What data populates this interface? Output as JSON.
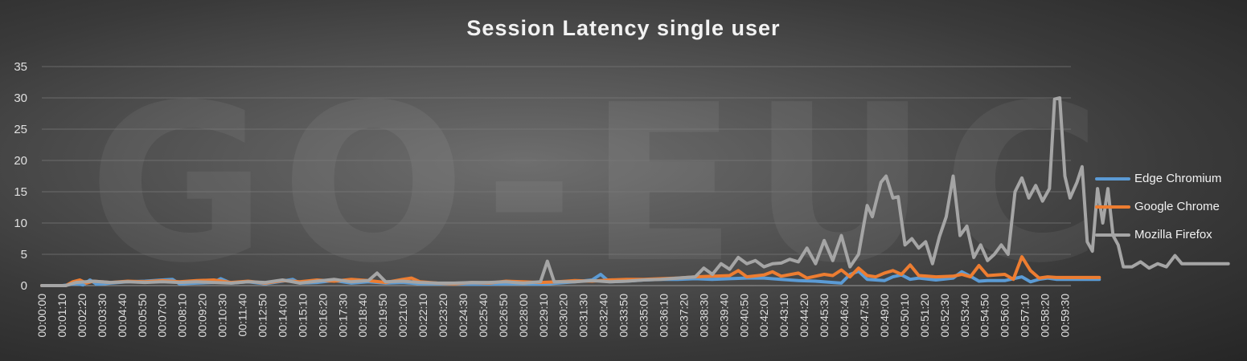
{
  "chart_data": {
    "type": "line",
    "title": "Session Latency single user",
    "watermark": "GO-EUC",
    "ylim": [
      0,
      35
    ],
    "yticks": [
      0,
      5,
      10,
      15,
      20,
      25,
      30,
      35
    ],
    "grid": true,
    "legend_position": "right",
    "x_labels": [
      "00:00:00",
      "00:01:10",
      "00:02:20",
      "00:03:30",
      "00:04:40",
      "00:05:50",
      "00:07:00",
      "00:08:10",
      "00:09:20",
      "00:10:30",
      "00:11:40",
      "00:12:50",
      "00:14:00",
      "00:15:10",
      "00:16:20",
      "00:17:30",
      "00:18:40",
      "00:19:50",
      "00:21:00",
      "00:22:10",
      "00:23:20",
      "00:24:30",
      "00:25:40",
      "00:26:50",
      "00:28:00",
      "00:29:10",
      "00:30:20",
      "00:31:30",
      "00:32:40",
      "00:33:50",
      "00:35:00",
      "00:36:10",
      "00:37:20",
      "00:38:30",
      "00:39:40",
      "00:40:50",
      "00:42:00",
      "00:43:10",
      "00:44:20",
      "00:45:30",
      "00:46:40",
      "00:47:50",
      "00:49:00",
      "00:50:10",
      "00:51:20",
      "00:52:30",
      "00:53:40",
      "00:54:50",
      "00:56:00",
      "00:57:10",
      "00:58:20",
      "00:59:30"
    ],
    "x_range_minutes": [
      0,
      61.5
    ],
    "series": [
      {
        "name": "Edge Chromium",
        "color": "#5b9bd5",
        "points": [
          [
            0,
            0
          ],
          [
            1.2,
            0
          ],
          [
            2.0,
            0.3
          ],
          [
            2.4,
            0.1
          ],
          [
            2.8,
            0.9
          ],
          [
            3.2,
            0.2
          ],
          [
            4,
            0.4
          ],
          [
            5,
            0.6
          ],
          [
            6,
            0.7
          ],
          [
            7,
            0.9
          ],
          [
            7.6,
            1.0
          ],
          [
            8,
            0.3
          ],
          [
            9,
            0.4
          ],
          [
            10,
            0.5
          ],
          [
            10.4,
            1.1
          ],
          [
            11,
            0.4
          ],
          [
            12,
            0.6
          ],
          [
            13,
            0.3
          ],
          [
            14,
            0.7
          ],
          [
            14.6,
            1.0
          ],
          [
            15,
            0.4
          ],
          [
            16,
            0.5
          ],
          [
            17,
            0.8
          ],
          [
            18,
            0.4
          ],
          [
            19,
            0.6
          ],
          [
            20,
            0.4
          ],
          [
            21,
            0.5
          ],
          [
            22,
            0.3
          ],
          [
            23,
            0.3
          ],
          [
            24,
            0.3
          ],
          [
            25,
            0.2
          ],
          [
            26,
            0.2
          ],
          [
            27,
            0.3
          ],
          [
            28,
            0.3
          ],
          [
            29,
            0.2
          ],
          [
            30,
            0.4
          ],
          [
            31,
            0.6
          ],
          [
            32,
            0.9
          ],
          [
            32.5,
            1.8
          ],
          [
            33,
            0.6
          ],
          [
            34,
            0.7
          ],
          [
            35,
            0.9
          ],
          [
            36,
            1.0
          ],
          [
            37,
            1.0
          ],
          [
            38,
            1.1
          ],
          [
            39,
            1.0
          ],
          [
            40,
            1.1
          ],
          [
            41,
            1.2
          ],
          [
            42,
            1.2
          ],
          [
            43,
            1.0
          ],
          [
            44,
            0.8
          ],
          [
            45,
            0.7
          ],
          [
            46,
            0.5
          ],
          [
            46.5,
            0.4
          ],
          [
            47,
            1.8
          ],
          [
            47.5,
            2.3
          ],
          [
            48,
            1.0
          ],
          [
            49,
            0.8
          ],
          [
            49.5,
            1.4
          ],
          [
            50,
            1.7
          ],
          [
            50.5,
            1.0
          ],
          [
            51,
            1.2
          ],
          [
            52,
            0.9
          ],
          [
            53,
            1.2
          ],
          [
            53.5,
            2.2
          ],
          [
            54,
            1.5
          ],
          [
            54.5,
            0.7
          ],
          [
            55,
            0.8
          ],
          [
            56,
            0.8
          ],
          [
            57,
            1.4
          ],
          [
            57.5,
            0.6
          ],
          [
            58,
            1.0
          ],
          [
            58.5,
            1.2
          ],
          [
            59,
            1.0
          ],
          [
            60,
            1.0
          ],
          [
            61.5,
            1.0
          ]
        ]
      },
      {
        "name": "Google Chrome",
        "color": "#ed7d31",
        "points": [
          [
            0,
            0
          ],
          [
            1.4,
            0
          ],
          [
            1.8,
            0.6
          ],
          [
            2.2,
            0.9
          ],
          [
            2.6,
            0.4
          ],
          [
            3,
            0.7
          ],
          [
            4,
            0.5
          ],
          [
            5,
            0.7
          ],
          [
            6,
            0.6
          ],
          [
            7,
            0.8
          ],
          [
            8,
            0.6
          ],
          [
            9,
            0.8
          ],
          [
            10,
            0.9
          ],
          [
            11,
            0.5
          ],
          [
            12,
            0.7
          ],
          [
            13,
            0.4
          ],
          [
            14,
            0.8
          ],
          [
            15,
            0.6
          ],
          [
            16,
            0.9
          ],
          [
            17,
            0.7
          ],
          [
            18,
            1.0
          ],
          [
            19,
            0.8
          ],
          [
            20,
            0.5
          ],
          [
            21,
            1.0
          ],
          [
            21.5,
            1.2
          ],
          [
            22,
            0.6
          ],
          [
            23,
            0.4
          ],
          [
            24,
            0.3
          ],
          [
            25,
            0.5
          ],
          [
            26,
            0.4
          ],
          [
            27,
            0.7
          ],
          [
            28,
            0.6
          ],
          [
            29,
            0.5
          ],
          [
            30,
            0.6
          ],
          [
            31,
            0.8
          ],
          [
            32,
            0.7
          ],
          [
            33,
            0.9
          ],
          [
            34,
            1.0
          ],
          [
            35,
            1.0
          ],
          [
            36,
            1.1
          ],
          [
            37,
            1.2
          ],
          [
            38,
            1.4
          ],
          [
            39,
            1.5
          ],
          [
            40,
            1.6
          ],
          [
            40.5,
            2.4
          ],
          [
            41,
            1.4
          ],
          [
            42,
            1.7
          ],
          [
            42.5,
            2.2
          ],
          [
            43,
            1.5
          ],
          [
            44,
            2.0
          ],
          [
            44.5,
            1.2
          ],
          [
            45,
            1.5
          ],
          [
            45.5,
            1.8
          ],
          [
            46,
            1.6
          ],
          [
            46.5,
            2.5
          ],
          [
            47,
            1.4
          ],
          [
            47.5,
            2.8
          ],
          [
            48,
            1.6
          ],
          [
            48.5,
            1.4
          ],
          [
            49,
            2.0
          ],
          [
            49.5,
            2.4
          ],
          [
            50,
            1.8
          ],
          [
            50.5,
            3.3
          ],
          [
            51,
            1.6
          ],
          [
            51.5,
            1.5
          ],
          [
            52,
            1.4
          ],
          [
            53,
            1.5
          ],
          [
            53.5,
            1.8
          ],
          [
            54,
            1.4
          ],
          [
            54.5,
            3.2
          ],
          [
            55,
            1.6
          ],
          [
            56,
            1.8
          ],
          [
            56.5,
            1.0
          ],
          [
            57,
            4.6
          ],
          [
            57.5,
            2.4
          ],
          [
            58,
            1.2
          ],
          [
            58.5,
            1.4
          ],
          [
            59,
            1.3
          ],
          [
            60,
            1.3
          ],
          [
            61.5,
            1.3
          ]
        ]
      },
      {
        "name": "Mozilla Firefox",
        "color": "#a5a5a5",
        "points": [
          [
            0,
            0
          ],
          [
            1.4,
            0
          ],
          [
            2,
            0.5
          ],
          [
            3,
            0.7
          ],
          [
            4,
            0.5
          ],
          [
            5,
            0.6
          ],
          [
            6,
            0.5
          ],
          [
            7,
            0.6
          ],
          [
            8,
            0.5
          ],
          [
            9,
            0.6
          ],
          [
            10,
            0.5
          ],
          [
            11,
            0.4
          ],
          [
            12,
            0.6
          ],
          [
            13,
            0.5
          ],
          [
            14,
            0.9
          ],
          [
            15,
            0.4
          ],
          [
            16,
            0.7
          ],
          [
            17,
            1.0
          ],
          [
            18,
            0.6
          ],
          [
            19,
            0.8
          ],
          [
            19.5,
            2.0
          ],
          [
            20,
            0.6
          ],
          [
            21,
            0.7
          ],
          [
            22,
            0.5
          ],
          [
            23,
            0.4
          ],
          [
            24,
            0.4
          ],
          [
            25,
            0.5
          ],
          [
            26,
            0.5
          ],
          [
            27,
            0.6
          ],
          [
            28,
            0.4
          ],
          [
            29,
            0.6
          ],
          [
            29.4,
            3.9
          ],
          [
            29.8,
            0.6
          ],
          [
            31,
            0.6
          ],
          [
            32,
            0.8
          ],
          [
            33,
            0.6
          ],
          [
            34,
            0.7
          ],
          [
            35,
            0.9
          ],
          [
            36,
            1.0
          ],
          [
            37,
            1.2
          ],
          [
            38,
            1.4
          ],
          [
            38.5,
            2.8
          ],
          [
            39,
            1.8
          ],
          [
            39.5,
            3.5
          ],
          [
            40,
            2.6
          ],
          [
            40.5,
            4.5
          ],
          [
            41,
            3.5
          ],
          [
            41.5,
            4.0
          ],
          [
            42,
            3.0
          ],
          [
            42.5,
            3.5
          ],
          [
            43,
            3.6
          ],
          [
            43.5,
            4.2
          ],
          [
            44,
            3.8
          ],
          [
            44.5,
            6.0
          ],
          [
            45,
            3.5
          ],
          [
            45.5,
            7.2
          ],
          [
            46,
            4.0
          ],
          [
            46.5,
            8.0
          ],
          [
            47,
            3.0
          ],
          [
            47.5,
            5.0
          ],
          [
            48,
            12.8
          ],
          [
            48.3,
            11.0
          ],
          [
            48.8,
            16.5
          ],
          [
            49.1,
            17.5
          ],
          [
            49.5,
            14.0
          ],
          [
            49.8,
            14.2
          ],
          [
            50.2,
            6.5
          ],
          [
            50.6,
            7.5
          ],
          [
            51,
            6.0
          ],
          [
            51.4,
            7.0
          ],
          [
            51.8,
            3.5
          ],
          [
            52.2,
            7.8
          ],
          [
            52.6,
            11.0
          ],
          [
            53,
            17.5
          ],
          [
            53.4,
            8.0
          ],
          [
            53.8,
            9.5
          ],
          [
            54.2,
            4.5
          ],
          [
            54.6,
            6.5
          ],
          [
            55,
            4.0
          ],
          [
            55.4,
            5.0
          ],
          [
            55.8,
            6.5
          ],
          [
            56.2,
            5.0
          ],
          [
            56.6,
            15.0
          ],
          [
            57,
            17.2
          ],
          [
            57.4,
            14.0
          ],
          [
            57.8,
            16.0
          ],
          [
            58.2,
            13.5
          ],
          [
            58.6,
            15.5
          ],
          [
            58.9,
            29.8
          ],
          [
            59.2,
            30.0
          ],
          [
            59.5,
            17.5
          ],
          [
            59.8,
            14.0
          ],
          [
            60.2,
            16.5
          ],
          [
            60.5,
            19.0
          ],
          [
            60.8,
            7.0
          ],
          [
            61.1,
            5.5
          ],
          [
            61.4,
            15.5
          ],
          [
            61.7,
            10.0
          ],
          [
            62,
            15.5
          ],
          [
            62.3,
            8.0
          ],
          [
            62.6,
            6.5
          ],
          [
            62.9,
            3.0
          ],
          [
            63.4,
            3.0
          ],
          [
            63.9,
            3.8
          ],
          [
            64.4,
            2.8
          ],
          [
            64.9,
            3.5
          ],
          [
            65.4,
            3.0
          ],
          [
            65.9,
            4.8
          ],
          [
            66.3,
            3.5
          ],
          [
            67,
            3.5
          ],
          [
            68,
            3.5
          ],
          [
            69,
            3.5
          ]
        ]
      }
    ]
  }
}
